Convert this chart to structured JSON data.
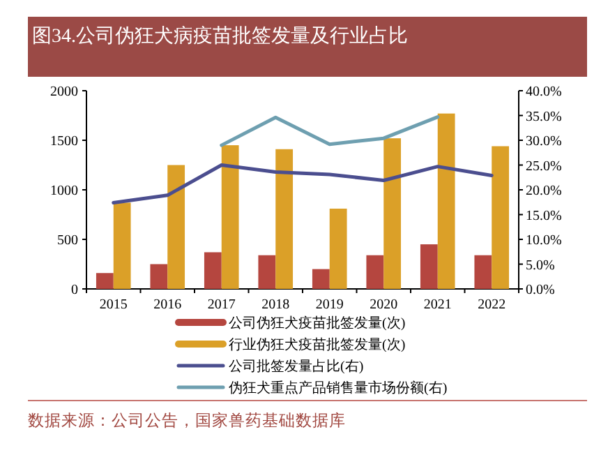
{
  "chart_data": {
    "type": "bar",
    "title": "图34.公司伪狂犬病疫苗批签发量及行业占比",
    "categories": [
      "2015",
      "2016",
      "2017",
      "2018",
      "2019",
      "2020",
      "2021",
      "2022"
    ],
    "series": [
      {
        "name": "公司伪狂犬疫苗批签发量(次)",
        "color": "#b5463f",
        "values": [
          160,
          250,
          370,
          340,
          200,
          340,
          450,
          340
        ]
      },
      {
        "name": "行业伪狂犬疫苗批签发量(次)",
        "color": "#dba028",
        "values": [
          870,
          1250,
          1450,
          1410,
          810,
          1520,
          1770,
          1440
        ]
      },
      {
        "name": "公司批签发量占比(右)",
        "type": "line",
        "axis": "y2",
        "color": "#4b4e8f",
        "values": [
          17.4,
          18.9,
          25.0,
          23.6,
          23.1,
          21.9,
          24.7,
          22.9
        ]
      },
      {
        "name": "伪狂犬重点产品销售量市场份额(右)",
        "type": "line",
        "axis": "y2",
        "color": "#6e9fb0",
        "values": [
          null,
          null,
          29.0,
          34.6,
          29.2,
          30.4,
          34.7,
          null
        ]
      }
    ],
    "ylim": [
      0,
      2000
    ],
    "yticks": [
      0,
      500,
      1000,
      1500,
      2000
    ],
    "y2lim": [
      0,
      40
    ],
    "y2ticks": [
      {
        "value": 0,
        "label": "0.0%"
      },
      {
        "value": 5,
        "label": "5.0%"
      },
      {
        "value": 10,
        "label": "10.0%"
      },
      {
        "value": 15,
        "label": "15.0%"
      },
      {
        "value": 20,
        "label": "20.0%"
      },
      {
        "value": 25,
        "label": "25.0%"
      },
      {
        "value": 30,
        "label": "30.0%"
      },
      {
        "value": 35,
        "label": "35.0%"
      },
      {
        "value": 40,
        "label": "40.0%"
      }
    ],
    "legend": "bottom",
    "annotations": [
      "数据来源：公司公告，国家兽药基础数据库"
    ]
  }
}
